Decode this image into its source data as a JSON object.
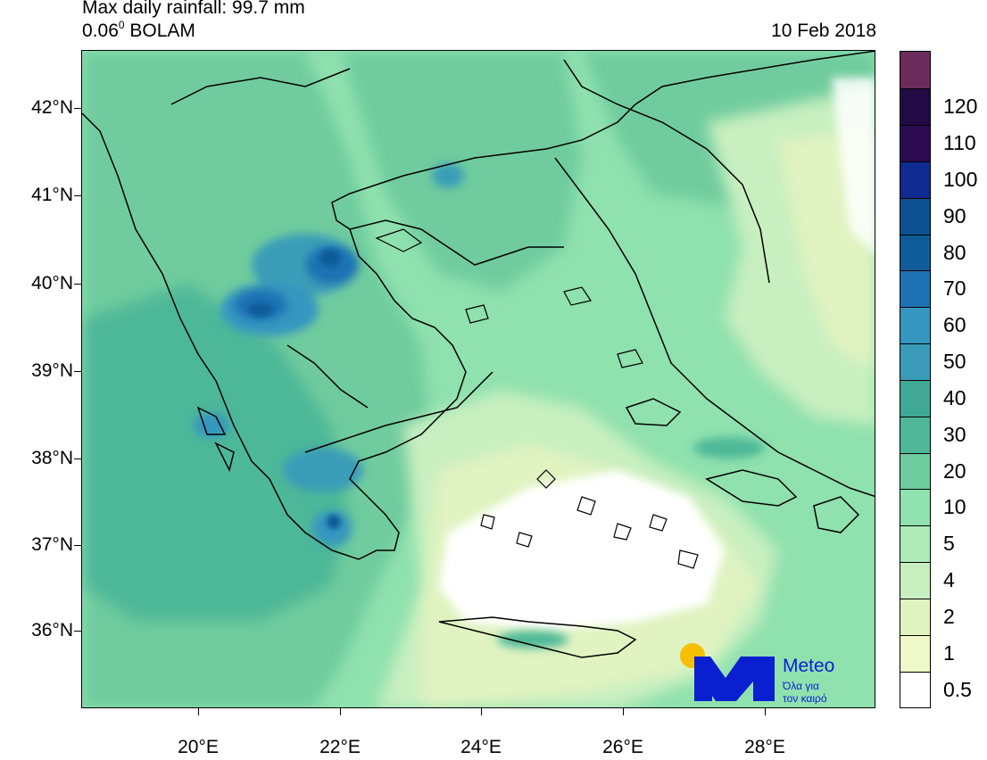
{
  "header": {
    "title_line1": "Max daily rainfall: 99.7 mm",
    "title_line2_prefix": "0.06",
    "title_line2_sup": "0",
    "title_line2_suffix": " BOLAM",
    "date": "10 Feb 2018"
  },
  "map": {
    "region": "Greece and Aegean Sea",
    "variable": "daily rainfall (mm)",
    "max_value_mm": 99.7,
    "lat_labels": [
      "42°N",
      "41°N",
      "40°N",
      "39°N",
      "38°N",
      "37°N",
      "36°N"
    ],
    "lon_labels": [
      "20°E",
      "22°E",
      "24°E",
      "26°E",
      "28°E"
    ]
  },
  "colorbar": {
    "levels": [
      {
        "label": "0.5",
        "color": "#ffffff"
      },
      {
        "label": "1",
        "color": "#eef8c8"
      },
      {
        "label": "2",
        "color": "#e1f3c1"
      },
      {
        "label": "4",
        "color": "#c8efc0"
      },
      {
        "label": "5",
        "color": "#aeeab8"
      },
      {
        "label": "10",
        "color": "#8fe1ae"
      },
      {
        "label": "20",
        "color": "#6fcc9e"
      },
      {
        "label": "30",
        "color": "#4eb898"
      },
      {
        "label": "40",
        "color": "#3fa996"
      },
      {
        "label": "50",
        "color": "#3a9cb8"
      },
      {
        "label": "60",
        "color": "#3596c0"
      },
      {
        "label": "70",
        "color": "#1f72b3"
      },
      {
        "label": "80",
        "color": "#105c9a"
      },
      {
        "label": "90",
        "color": "#0c5290"
      },
      {
        "label": "100",
        "color": "#102b92"
      },
      {
        "label": "110",
        "color": "#2b0a52"
      },
      {
        "label": "120",
        "color": "#220a44"
      },
      {
        "label": "",
        "color": "#6b2c5c"
      }
    ]
  },
  "logo": {
    "brand": "Meteo",
    "tagline_line1": "Όλα για",
    "tagline_line2": "τον καιρό",
    "sun_color": "#f6c000",
    "brand_color": "#0a1fd0"
  }
}
